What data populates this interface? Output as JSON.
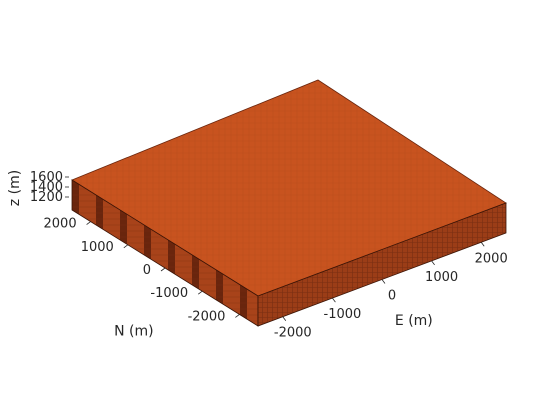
{
  "chart_data": {
    "type": "3d-voxel-block",
    "xlabel": "E (m)",
    "ylabel": "N (m)",
    "zlabel": "z (m)",
    "x_ticks": [
      "-2000",
      "-1000",
      "0",
      "1000",
      "2000"
    ],
    "y_ticks": [
      "-2000",
      "-1000",
      "0",
      "1000",
      "2000"
    ],
    "z_ticks": [
      "1200",
      "1400",
      "1600"
    ],
    "x_range": [
      -2500,
      2500
    ],
    "y_range": [
      -2500,
      2500
    ],
    "z_range": [
      1100,
      1700
    ],
    "grid": false,
    "colors": {
      "top": "#c8531f",
      "side_light": "#a8431a",
      "side_dark": "#5e200b",
      "edge": "#3a1406",
      "text": "#262626"
    }
  }
}
